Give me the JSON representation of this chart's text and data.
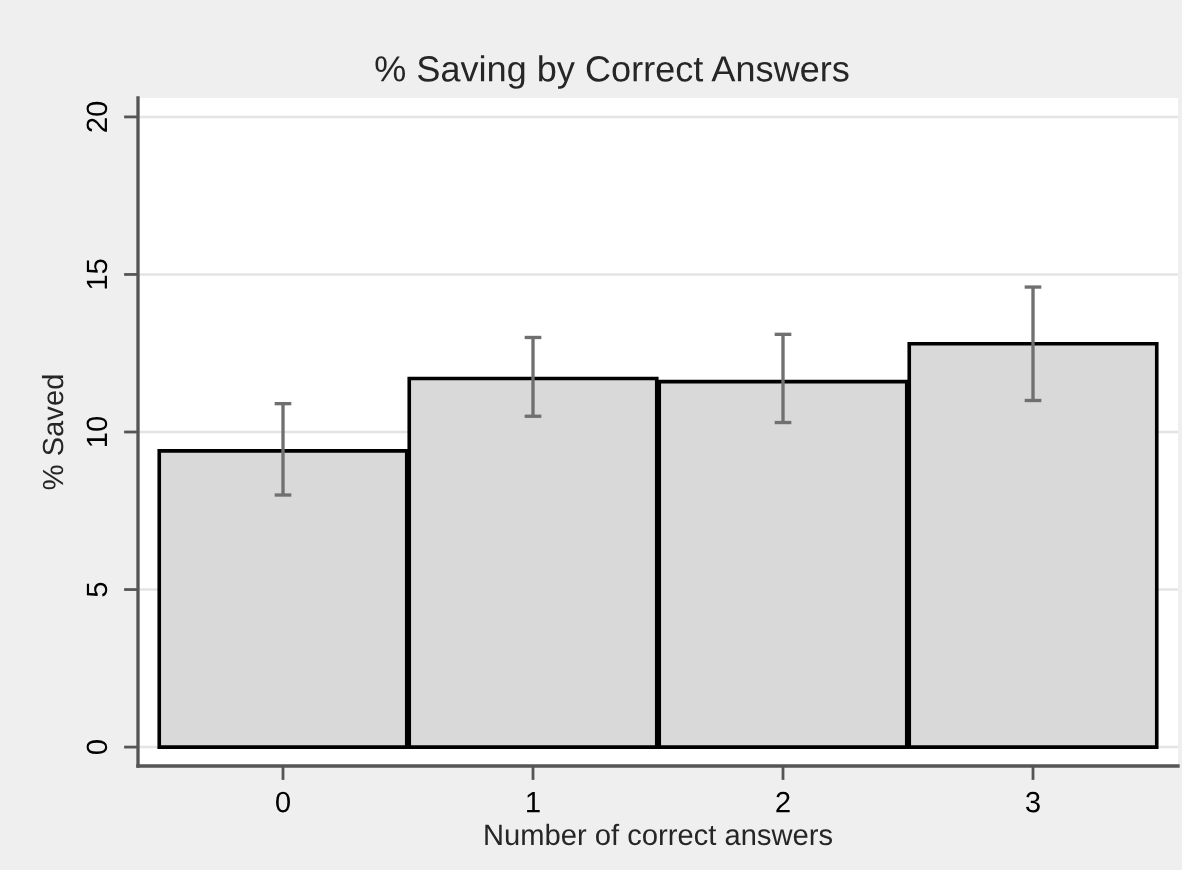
{
  "chart_data": {
    "type": "bar",
    "title": "% Saving by Correct Answers",
    "xlabel": "Number of correct answers",
    "ylabel": "% Saved",
    "categories": [
      "0",
      "1",
      "2",
      "3"
    ],
    "values": [
      9.4,
      11.7,
      11.6,
      12.8
    ],
    "errors": [
      [
        8.0,
        10.9
      ],
      [
        10.5,
        13.0
      ],
      [
        10.3,
        13.1
      ],
      [
        11.0,
        14.6
      ]
    ],
    "color": "#d9d9d9",
    "ylim": [
      -0.6,
      20.6
    ],
    "yticks": [
      0,
      5,
      10,
      15,
      20
    ],
    "grid": "y"
  }
}
